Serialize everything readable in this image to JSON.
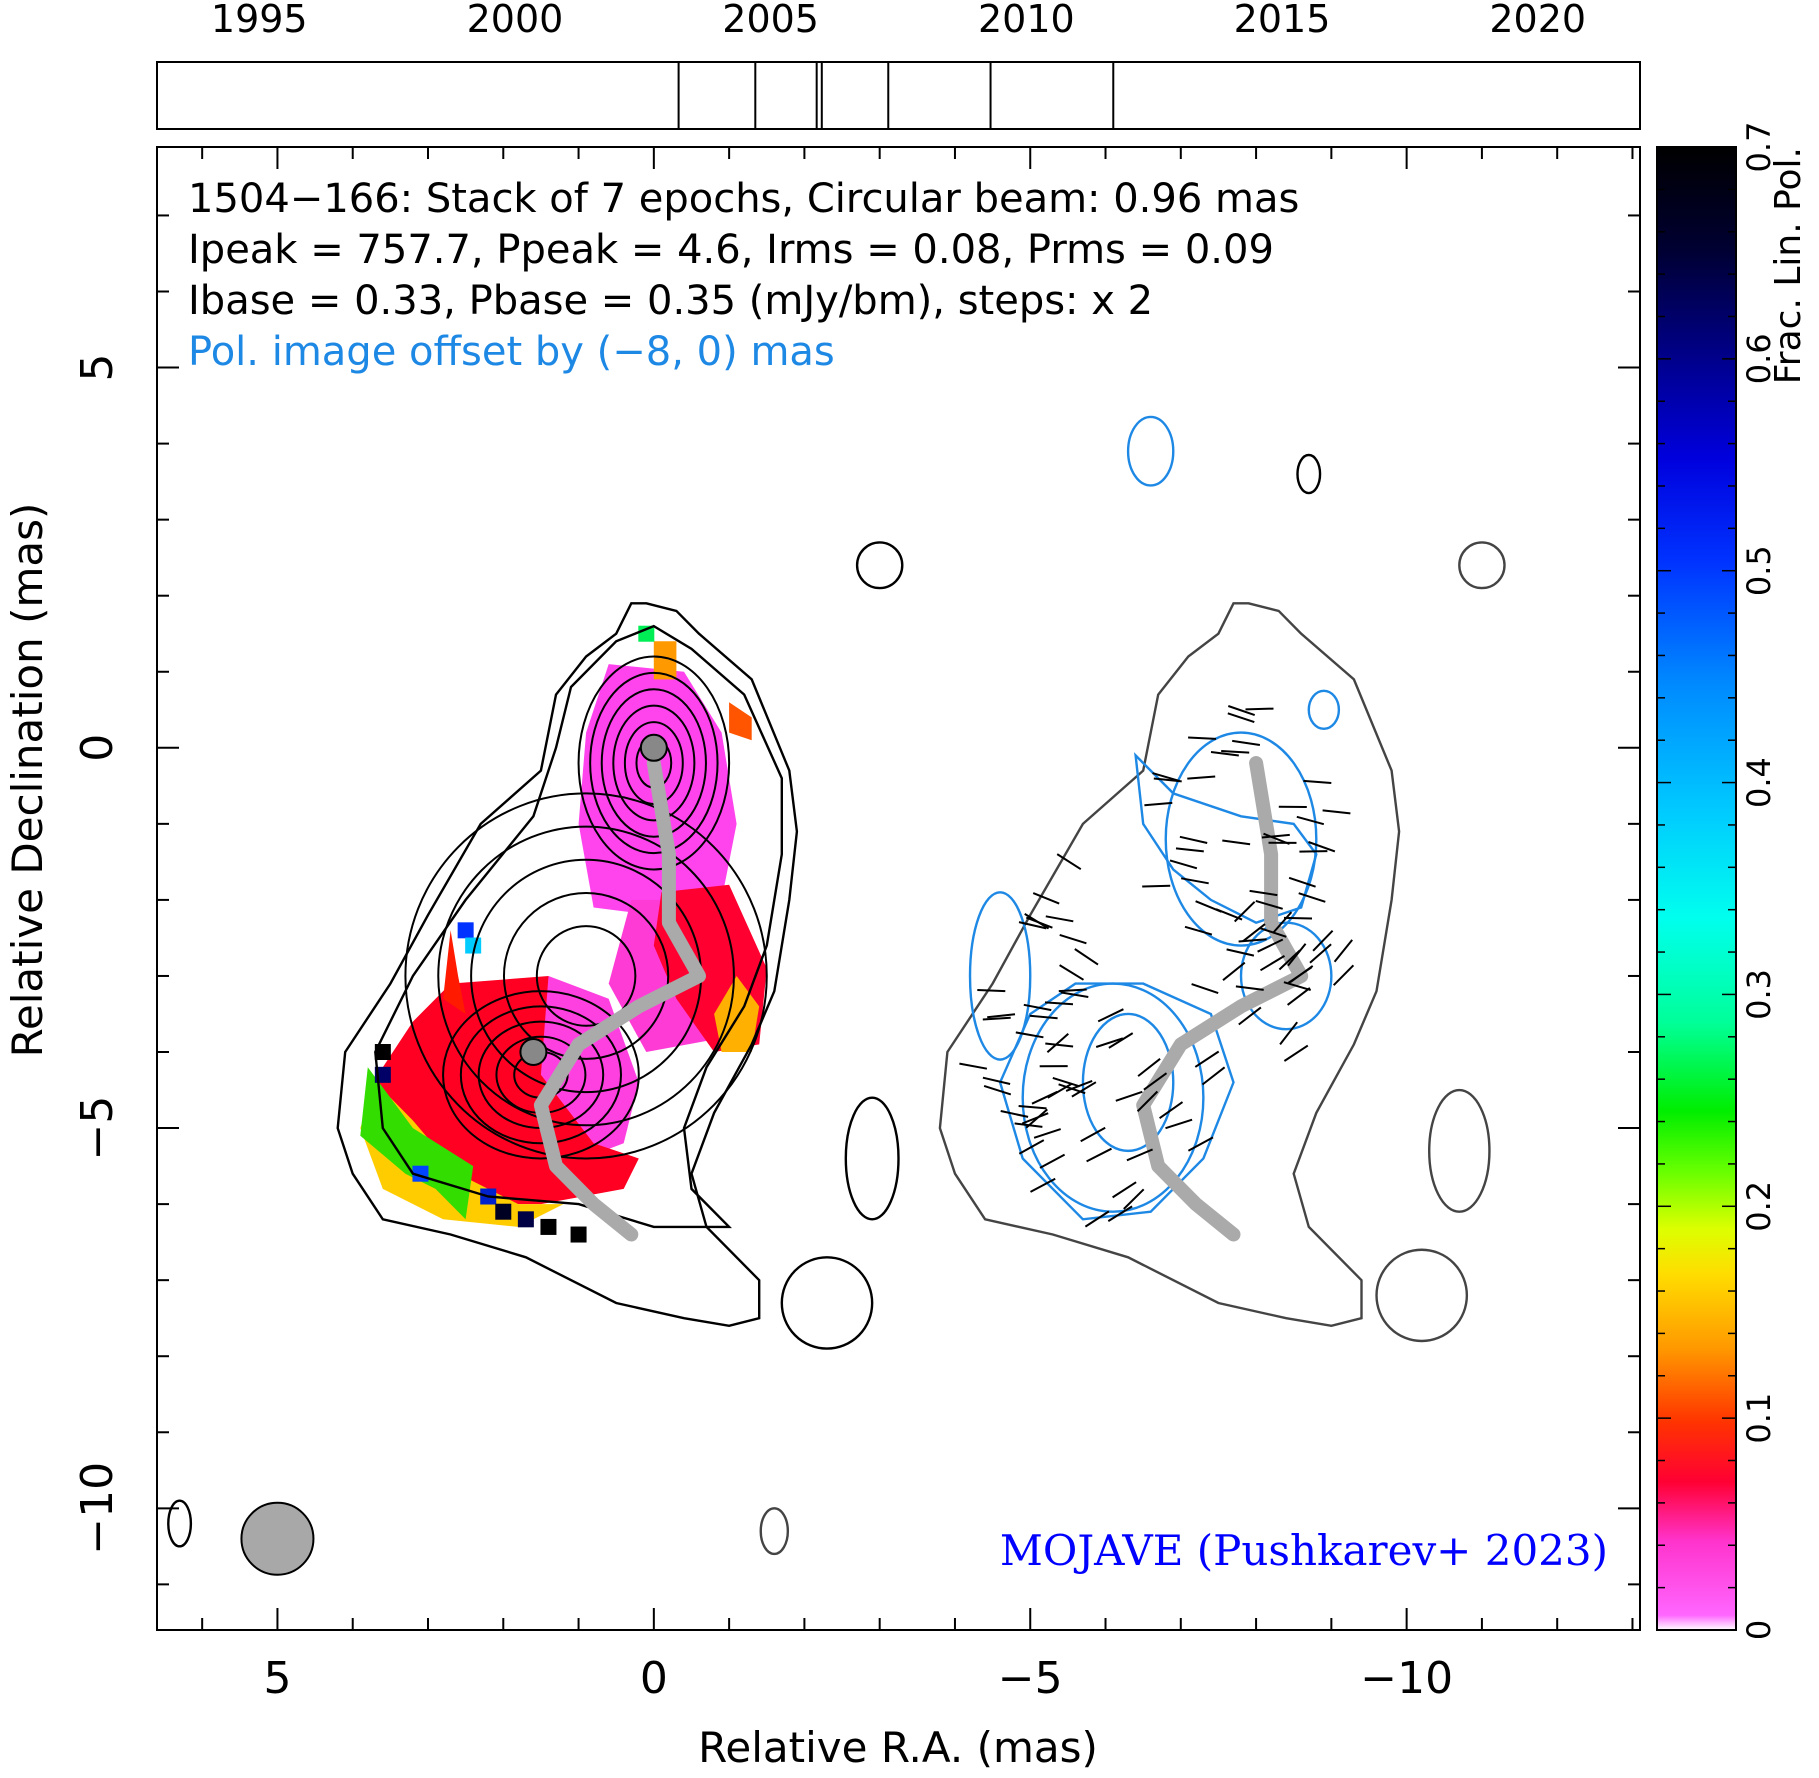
{
  "chart_data": {
    "type": "heatmap",
    "source_id": "1504−166",
    "header_lines": [
      "1504−166: Stack of 7 epochs, Circular beam: 0.96 mas",
      "Ipeak = 757.7, Ppeak = 4.6, Irms = 0.08, Prms = 0.09",
      "Ibase = 0.33, Pbase = 0.35 (mJy/bm), steps: x 2"
    ],
    "offset_note": "Pol. image offset by (−8, 0) mas",
    "credit": "MOJAVE (Pushkarev+ 2023)",
    "xlabel": "Relative R.A. (mas)",
    "ylabel": "Relative Declination (mas)",
    "x_axis": {
      "direction": "decreasing",
      "xlim": [
        6.6,
        -13.1
      ],
      "major_ticks": [
        5,
        0,
        -5,
        -10
      ],
      "tick_labels": [
        "5",
        "0",
        "−5",
        "−10"
      ]
    },
    "y_axis": {
      "ylim": [
        -11.6,
        7.9
      ],
      "major_ticks": [
        5,
        0,
        -5,
        -10
      ],
      "tick_labels": [
        "5",
        "0",
        "−5",
        "−10"
      ]
    },
    "epoch_timeline": {
      "range": [
        1993,
        2022
      ],
      "tick_labels": [
        "1995",
        "2000",
        "2005",
        "2010",
        "2015",
        "2020"
      ],
      "ticks": [
        1995,
        2000,
        2005,
        2010,
        2015,
        2020
      ],
      "epochs": [
        2003.2,
        2004.7,
        2005.9,
        2006.0,
        2007.3,
        2009.3,
        2011.7
      ]
    },
    "colorbar": {
      "label": "Frac. Lin. Pol.",
      "range": [
        0,
        0.7
      ],
      "ticks": [
        0,
        0.1,
        0.2,
        0.3,
        0.4,
        0.5,
        0.6,
        0.7
      ],
      "tick_labels": [
        "0",
        "0.1",
        "0.2",
        "0.3",
        "0.4",
        "0.5",
        "0.6",
        "0.7"
      ]
    },
    "beam": {
      "ra": 5.0,
      "dec": -10.4,
      "diameter_mas": 0.96
    },
    "core": {
      "ra": 0.0,
      "dec": 0.0
    },
    "intensity_contours": [
      {
        "level": 1,
        "points": [
          [
            0.1,
            1.9
          ],
          [
            -0.3,
            1.8
          ],
          [
            -0.6,
            1.5
          ],
          [
            -1.3,
            0.9
          ],
          [
            -1.8,
            -0.3
          ],
          [
            -1.9,
            -1.1
          ],
          [
            -1.8,
            -2.0
          ],
          [
            -1.6,
            -3.2
          ],
          [
            -1.3,
            -3.9
          ],
          [
            -0.8,
            -4.8
          ],
          [
            -0.5,
            -5.6
          ],
          [
            -0.7,
            -6.3
          ],
          [
            -1.4,
            -7.0
          ],
          [
            -1.4,
            -7.5
          ],
          [
            -1.0,
            -7.6
          ],
          [
            -0.4,
            -7.5
          ],
          [
            0.5,
            -7.3
          ],
          [
            1.7,
            -6.7
          ],
          [
            2.7,
            -6.4
          ],
          [
            3.6,
            -6.2
          ],
          [
            4.0,
            -5.6
          ],
          [
            4.2,
            -5.0
          ],
          [
            4.1,
            -4.0
          ],
          [
            3.5,
            -3.1
          ],
          [
            3.0,
            -2.2
          ],
          [
            2.3,
            -1.0
          ],
          [
            1.5,
            -0.3
          ],
          [
            1.3,
            0.7
          ],
          [
            0.9,
            1.2
          ],
          [
            0.5,
            1.5
          ],
          [
            0.3,
            1.9
          ]
        ]
      },
      {
        "level": 2,
        "points": [
          [
            0.0,
            1.6
          ],
          [
            -0.5,
            1.3
          ],
          [
            -1.2,
            0.7
          ],
          [
            -1.7,
            -0.4
          ],
          [
            -1.7,
            -1.4
          ],
          [
            -1.5,
            -2.6
          ],
          [
            -1.2,
            -3.4
          ],
          [
            -0.7,
            -4.2
          ],
          [
            -0.4,
            -5.0
          ],
          [
            -0.5,
            -5.8
          ],
          [
            -1.0,
            -6.3
          ],
          [
            0.0,
            -6.3
          ],
          [
            1.0,
            -6.0
          ],
          [
            2.2,
            -5.9
          ],
          [
            3.2,
            -5.6
          ],
          [
            3.6,
            -5.0
          ],
          [
            3.7,
            -4.0
          ],
          [
            3.2,
            -3.0
          ],
          [
            2.5,
            -2.0
          ],
          [
            1.6,
            -0.9
          ],
          [
            1.3,
            0.0
          ],
          [
            1.1,
            0.8
          ],
          [
            0.5,
            1.4
          ]
        ]
      }
    ],
    "polarization_contours": [
      {
        "region": "inner",
        "points": [
          [
            -6.4,
            -0.1
          ],
          [
            -6.9,
            -0.6
          ],
          [
            -7.8,
            -0.9
          ],
          [
            -8.5,
            -1.0
          ],
          [
            -8.8,
            -1.4
          ],
          [
            -8.6,
            -2.1
          ],
          [
            -8.0,
            -2.3
          ],
          [
            -7.4,
            -2.0
          ],
          [
            -6.9,
            -1.6
          ],
          [
            -6.5,
            -1.0
          ]
        ]
      },
      {
        "region": "lower",
        "points": [
          [
            -5.0,
            -3.5
          ],
          [
            -4.6,
            -4.4
          ],
          [
            -4.9,
            -5.4
          ],
          [
            -5.7,
            -6.2
          ],
          [
            -6.6,
            -6.1
          ],
          [
            -7.3,
            -5.4
          ],
          [
            -7.7,
            -4.4
          ],
          [
            -7.4,
            -3.5
          ],
          [
            -6.5,
            -3.1
          ],
          [
            -5.6,
            -3.1
          ]
        ]
      }
    ],
    "evpa_ticks_count": 120
  }
}
